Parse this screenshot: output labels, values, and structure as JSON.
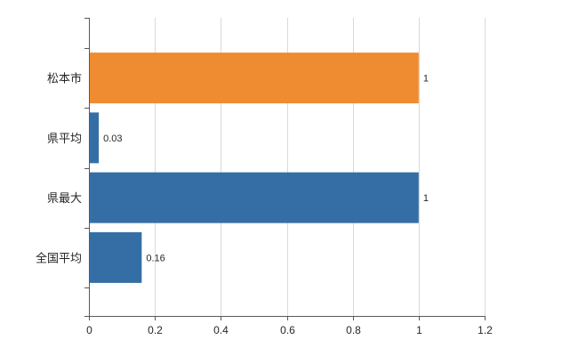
{
  "chart_data": {
    "type": "bar",
    "orientation": "horizontal",
    "title": "",
    "xlabel": "",
    "ylabel": "",
    "categories": [
      "松本市",
      "県平均",
      "県最大",
      "全国平均"
    ],
    "values": [
      1,
      0.03,
      1,
      0.16
    ],
    "value_labels": [
      "1",
      "0.03",
      "1",
      "0.16"
    ],
    "bar_colors": [
      "#EF8B30",
      "#356EA5",
      "#356EA5",
      "#356EA5"
    ],
    "xlim": [
      0,
      1.2
    ],
    "x_ticks": [
      0,
      0.2,
      0.4,
      0.6,
      0.8,
      1,
      1.2
    ],
    "x_tick_labels": [
      "0",
      "0.2",
      "0.4",
      "0.6",
      "0.8",
      "1",
      "1.2"
    ],
    "grid": true,
    "legend": "none",
    "grid_color": "#D9D9D9",
    "axis_color": "#595959",
    "text_color": "#262626",
    "background_color": "#FFFFFF"
  }
}
